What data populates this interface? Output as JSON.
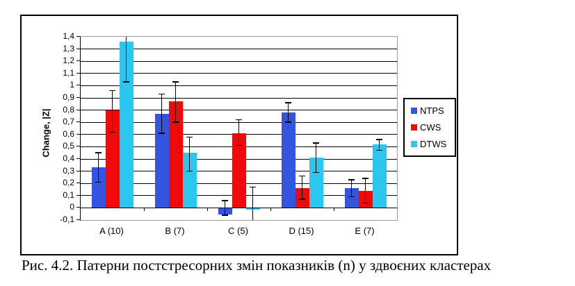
{
  "figure": {
    "caption": "Рис. 4.2. Патерни постстресорних змін показників (n) у здвоєних кластерах"
  },
  "chart_data": {
    "type": "bar",
    "title": "",
    "xlabel": "",
    "ylabel": "Change, |Z|",
    "ylim": [
      -0.1,
      1.4
    ],
    "ytick_step": 0.1,
    "ytick_labels": [
      "1,4",
      "1,3",
      "1,2",
      "1,1",
      "1",
      "0,9",
      "0,8",
      "0,7",
      "0,6",
      "0,5",
      "0,4",
      "0,3",
      "0,2",
      "0,1",
      "0",
      "-0,1"
    ],
    "grid": "horizontal",
    "error_bars": true,
    "legend_position": "right-outside",
    "categories": [
      "A (10)",
      "B (7)",
      "C (5)",
      "D (15)",
      "E (7)"
    ],
    "series": [
      {
        "name": "NTPS",
        "color": "#3354DE",
        "values": [
          0.33,
          0.77,
          -0.05,
          0.78,
          0.16
        ],
        "error_low": [
          0.21,
          0.61,
          -0.06,
          0.7,
          0.09
        ],
        "error_high": [
          0.45,
          0.93,
          0.06,
          0.86,
          0.23
        ]
      },
      {
        "name": "CWS",
        "color": "#EE0A0A",
        "values": [
          0.8,
          0.87,
          0.61,
          0.16,
          0.14
        ],
        "error_low": [
          0.62,
          0.7,
          0.51,
          0.07,
          0.04
        ],
        "error_high": [
          0.96,
          1.03,
          0.72,
          0.26,
          0.24
        ]
      },
      {
        "name": "DTWS",
        "color": "#2BC7EE",
        "values": [
          1.36,
          0.45,
          -0.01,
          0.41,
          0.52
        ],
        "error_low": [
          1.03,
          0.3,
          -0.1,
          0.29,
          0.47
        ],
        "error_high": [
          1.4,
          0.58,
          0.17,
          0.53,
          0.56
        ]
      }
    ]
  }
}
